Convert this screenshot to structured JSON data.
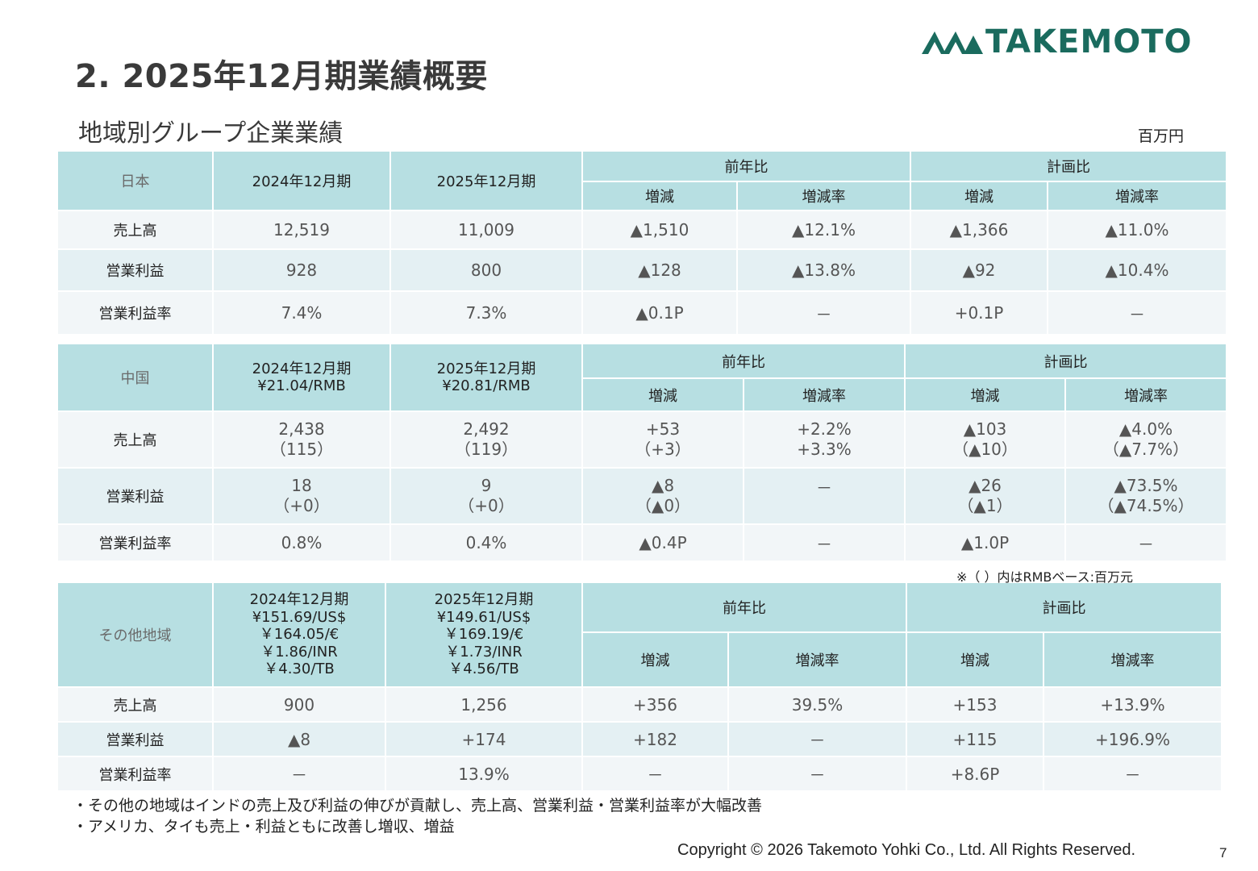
{
  "header": {
    "title": "2. 2025年12月期業績概要",
    "logo_text": "TAKEMOTO",
    "brand_color": "#1a6b5e"
  },
  "section": {
    "subtitle": "地域別グループ企業業績",
    "unit": "百万円"
  },
  "headers": {
    "yoy": "前年比",
    "plan": "計画比",
    "change": "増減",
    "change_rate": "増減率"
  },
  "japan": {
    "region": "日本",
    "col_2024": "2024年12月期",
    "col_2025": "2025年12月期",
    "rows": [
      {
        "label": "売上高",
        "v2024": "12,519",
        "v2025": "11,009",
        "yoy_change": "▲1,510",
        "yoy_rate": "▲12.1%",
        "plan_change": "▲1,366",
        "plan_rate": "▲11.0%"
      },
      {
        "label": "営業利益",
        "v2024": "928",
        "v2025": "800",
        "yoy_change": "▲128",
        "yoy_rate": "▲13.8%",
        "plan_change": "▲92",
        "plan_rate": "▲10.4%"
      },
      {
        "label": "営業利益率",
        "v2024": "7.4%",
        "v2025": "7.3%",
        "yoy_change": "▲0.1P",
        "yoy_rate": "－",
        "plan_change": "+0.1P",
        "plan_rate": "－"
      }
    ]
  },
  "china": {
    "region": "中国",
    "col_2024": "2024年12月期",
    "col_2024_rate": "¥21.04/RMB",
    "col_2025": "2025年12月期",
    "col_2025_rate": "¥20.81/RMB",
    "rows": [
      {
        "label": "売上高",
        "v2024": "2,438",
        "v2024_sub": "（115）",
        "v2025": "2,492",
        "v2025_sub": "（119）",
        "yoy_change": "+53",
        "yoy_change_sub": "（+3）",
        "yoy_rate": "+2.2%",
        "yoy_rate_sub": "+3.3%",
        "plan_change": "▲103",
        "plan_change_sub": "（▲10）",
        "plan_rate": "▲4.0%",
        "plan_rate_sub": "（▲7.7%）"
      },
      {
        "label": "営業利益",
        "v2024": "18",
        "v2024_sub": "（+0）",
        "v2025": "9",
        "v2025_sub": "（+0）",
        "yoy_change": "▲8",
        "yoy_change_sub": "（▲0）",
        "yoy_rate": "－",
        "yoy_rate_sub": "",
        "plan_change": "▲26",
        "plan_change_sub": "（▲1）",
        "plan_rate": "▲73.5%",
        "plan_rate_sub": "（▲74.5%）"
      },
      {
        "label": "営業利益率",
        "v2024": "0.8%",
        "v2025": "0.4%",
        "yoy_change": "▲0.4P",
        "yoy_rate": "－",
        "plan_change": "▲1.0P",
        "plan_rate": "－"
      }
    ],
    "note": "※（ ）内はRMBベース:百万元"
  },
  "other": {
    "region": "その他地域",
    "col_2024": "2024年12月期",
    "col_2024_rates": [
      "¥151.69/US$",
      "￥164.05/€",
      "￥1.86/INR",
      "￥4.30/TB"
    ],
    "col_2025": "2025年12月期",
    "col_2025_rates": [
      "¥149.61/US$",
      "￥169.19/€",
      "￥1.73/INR",
      "￥4.56/TB"
    ],
    "rows": [
      {
        "label": "売上高",
        "v2024": "900",
        "v2025": "1,256",
        "yoy_change": "+356",
        "yoy_rate": "39.5%",
        "plan_change": "+153",
        "plan_rate": "+13.9%"
      },
      {
        "label": "営業利益",
        "v2024": "▲8",
        "v2025": "+174",
        "yoy_change": "+182",
        "yoy_rate": "－",
        "plan_change": "+115",
        "plan_rate": "+196.9%"
      },
      {
        "label": "営業利益率",
        "v2024": "－",
        "v2025": "13.9%",
        "yoy_change": "－",
        "yoy_rate": "－",
        "plan_change": "+8.6P",
        "plan_rate": "－"
      }
    ]
  },
  "bullets": [
    "・その他の地域はインドの売上及び利益の伸びが貢献し、売上高、営業利益・営業利益率が大幅改善",
    "・アメリカ、タイも売上・利益ともに改善し増収、増益"
  ],
  "footer": {
    "copyright": "Copyright © 2026 Takemoto Yohki Co., Ltd. All Rights Reserved.",
    "page_number": "7"
  }
}
